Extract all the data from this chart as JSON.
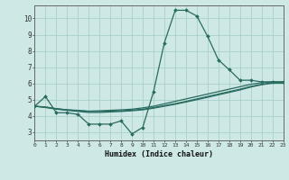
{
  "xlabel": "Humidex (Indice chaleur)",
  "xlim": [
    0,
    23
  ],
  "ylim": [
    2.5,
    10.8
  ],
  "xticks": [
    0,
    1,
    2,
    3,
    4,
    5,
    6,
    7,
    8,
    9,
    10,
    11,
    12,
    13,
    14,
    15,
    16,
    17,
    18,
    19,
    20,
    21,
    22,
    23
  ],
  "yticks": [
    3,
    4,
    5,
    6,
    7,
    8,
    9,
    10
  ],
  "bg_color": "#cde8e5",
  "grid_color": "#aad0cc",
  "line_color": "#2a6b60",
  "line1_x": [
    0,
    1,
    2,
    3,
    4,
    5,
    6,
    7,
    8,
    9,
    10,
    11,
    12,
    13,
    14,
    15,
    16,
    17,
    18,
    19,
    20,
    21,
    22,
    23
  ],
  "line1_y": [
    4.6,
    5.2,
    4.2,
    4.2,
    4.1,
    3.5,
    3.5,
    3.5,
    3.7,
    2.9,
    3.3,
    5.5,
    8.5,
    10.5,
    10.5,
    10.15,
    8.9,
    7.45,
    6.85,
    6.2,
    6.2,
    6.1,
    6.1,
    6.1
  ],
  "line2_x": [
    0,
    1,
    2,
    3,
    4,
    5,
    6,
    7,
    8,
    9,
    10,
    11,
    12,
    13,
    14,
    15,
    16,
    17,
    18,
    19,
    20,
    21,
    22,
    23
  ],
  "line2_y": [
    4.6,
    4.55,
    4.45,
    4.38,
    4.35,
    4.3,
    4.32,
    4.35,
    4.38,
    4.42,
    4.5,
    4.6,
    4.75,
    4.9,
    5.05,
    5.2,
    5.35,
    5.5,
    5.65,
    5.8,
    5.95,
    6.05,
    6.1,
    6.1
  ],
  "line3_x": [
    0,
    1,
    2,
    3,
    4,
    5,
    6,
    7,
    8,
    9,
    10,
    11,
    12,
    13,
    14,
    15,
    16,
    17,
    18,
    19,
    20,
    21,
    22,
    23
  ],
  "line3_y": [
    4.6,
    4.55,
    4.45,
    4.38,
    4.32,
    4.28,
    4.28,
    4.3,
    4.32,
    4.36,
    4.42,
    4.52,
    4.64,
    4.76,
    4.9,
    5.05,
    5.2,
    5.35,
    5.5,
    5.65,
    5.82,
    5.95,
    6.05,
    6.05
  ],
  "line4_x": [
    0,
    1,
    2,
    3,
    4,
    5,
    6,
    7,
    8,
    9,
    10,
    11,
    12,
    13,
    14,
    15,
    16,
    17,
    18,
    19,
    20,
    21,
    22,
    23
  ],
  "line4_y": [
    4.6,
    4.52,
    4.42,
    4.35,
    4.28,
    4.22,
    4.22,
    4.25,
    4.28,
    4.32,
    4.38,
    4.48,
    4.6,
    4.72,
    4.86,
    5.0,
    5.15,
    5.3,
    5.45,
    5.6,
    5.78,
    5.92,
    6.02,
    6.02
  ]
}
